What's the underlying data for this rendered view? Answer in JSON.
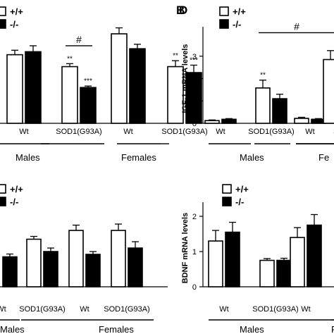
{
  "chart_data": [
    {
      "panel": "",
      "type": "bar",
      "ylabel": "",
      "ylim": [
        0,
        3.0
      ],
      "yticks": [],
      "legend": [
        "+/+",
        "-/-"
      ],
      "groups": [
        {
          "tick": "Wt",
          "sex": "Males",
          "wt": 2.3,
          "wt_err": 0.15,
          "ko": 2.4,
          "ko_err": 0.2,
          "marks": [
            "",
            ""
          ]
        },
        {
          "tick": "SOD1(G93A)",
          "sex": "Males",
          "wt": 1.9,
          "wt_err": 0.1,
          "ko": 1.2,
          "ko_err": 0.05,
          "marks": [
            "**",
            "***"
          ]
        },
        {
          "tick": "Wt",
          "sex": "Females",
          "wt": 3.0,
          "wt_err": 0.2,
          "ko": 2.5,
          "ko_err": 0.15,
          "marks": [
            "",
            ""
          ]
        },
        {
          "tick": "SOD1(G93A)",
          "sex": "Females",
          "wt": 1.9,
          "wt_err": 0.2,
          "ko": 1.7,
          "ko_err": 0.25,
          "marks": [
            "**",
            "***"
          ]
        }
      ],
      "brackets": [
        {
          "from": [
            1,
            0
          ],
          "to": [
            1,
            1
          ],
          "y": 2.6,
          "label": "#"
        }
      ],
      "sex_labels": [
        "Males",
        "Females"
      ]
    },
    {
      "panel": "B",
      "type": "bar",
      "ylabel": "IGF-1 mRNA levels",
      "ylim": [
        0,
        4.0
      ],
      "yticks": [
        "0",
        "1",
        "2",
        "3"
      ],
      "legend": [
        "+/+",
        "-/-"
      ],
      "groups": [
        {
          "tick": "Wt",
          "sex": "Males",
          "wt": 0.12,
          "wt_err": 0.03,
          "ko": 0.18,
          "ko_err": 0.03,
          "marks": [
            "",
            ""
          ]
        },
        {
          "tick": "SOD1(G93A)",
          "sex": "Males",
          "wt": 1.58,
          "wt_err": 0.35,
          "ko": 1.1,
          "ko_err": 0.2,
          "marks": [
            "**",
            ""
          ]
        },
        {
          "tick": "Wt",
          "sex": "Females",
          "wt": 0.22,
          "wt_err": 0.05,
          "ko": 0.18,
          "ko_err": 0.03,
          "marks": [
            "",
            ""
          ]
        },
        {
          "tick": "SO",
          "sex": "Females",
          "wt": 2.85,
          "wt_err": 0.4,
          "ko": 0.0,
          "ko_err": 0.0,
          "marks": [
            "",
            ""
          ]
        }
      ],
      "brackets": [
        {
          "from": [
            1,
            0
          ],
          "to": [
            3,
            0
          ],
          "y": 4.05,
          "label": "#"
        }
      ],
      "sex_labels": [
        "Males",
        "Fe"
      ]
    },
    {
      "panel": "",
      "type": "bar",
      "ylabel": "",
      "ylim": [
        0,
        2.2
      ],
      "yticks": [],
      "legend": [
        "+/+",
        "-/-"
      ],
      "groups": [
        {
          "tick": "Wt",
          "sex": "Males",
          "wt": 0.0,
          "wt_err": 0.0,
          "ko": 0.85,
          "ko_err": 0.08,
          "marks": [
            "",
            ""
          ]
        },
        {
          "tick": "SOD1(G93A)",
          "sex": "Males",
          "wt": 1.35,
          "wt_err": 0.08,
          "ko": 1.0,
          "ko_err": 0.1,
          "marks": [
            "",
            ""
          ]
        },
        {
          "tick": "Wt",
          "sex": "Females",
          "wt": 1.6,
          "wt_err": 0.15,
          "ko": 0.92,
          "ko_err": 0.08,
          "marks": [
            "",
            ""
          ]
        },
        {
          "tick": "SOD1(G93A)",
          "sex": "Females",
          "wt": 1.6,
          "wt_err": 0.18,
          "ko": 1.1,
          "ko_err": 0.18,
          "marks": [
            "",
            ""
          ]
        }
      ],
      "brackets": [],
      "sex_labels": [
        "Males",
        "Females"
      ]
    },
    {
      "panel": "D",
      "type": "bar",
      "ylabel": "BDNF mRNA levels",
      "ylim": [
        0,
        2.2
      ],
      "yticks": [
        "0",
        "1",
        "2"
      ],
      "legend": [
        "+/+",
        "-/-"
      ],
      "groups": [
        {
          "tick": "Wt",
          "sex": "Males",
          "wt": 1.3,
          "wt_err": 0.3,
          "ko": 1.55,
          "ko_err": 0.28,
          "marks": [
            "",
            ""
          ]
        },
        {
          "tick": "SOD1(G93A)",
          "sex": "Males",
          "wt": 0.75,
          "wt_err": 0.05,
          "ko": 0.75,
          "ko_err": 0.06,
          "marks": [
            "",
            ""
          ]
        },
        {
          "tick": "Wt",
          "sex": "Females",
          "wt": 1.4,
          "wt_err": 0.28,
          "ko": 1.75,
          "ko_err": 0.3,
          "marks": [
            "",
            ""
          ]
        },
        {
          "tick": "S",
          "sex": "Females",
          "wt": 0.0,
          "wt_err": 0.0,
          "ko": 0.0,
          "ko_err": 0.0,
          "marks": [
            "",
            ""
          ]
        }
      ],
      "brackets": [],
      "sex_labels": [
        "Males",
        "Fe"
      ]
    }
  ]
}
